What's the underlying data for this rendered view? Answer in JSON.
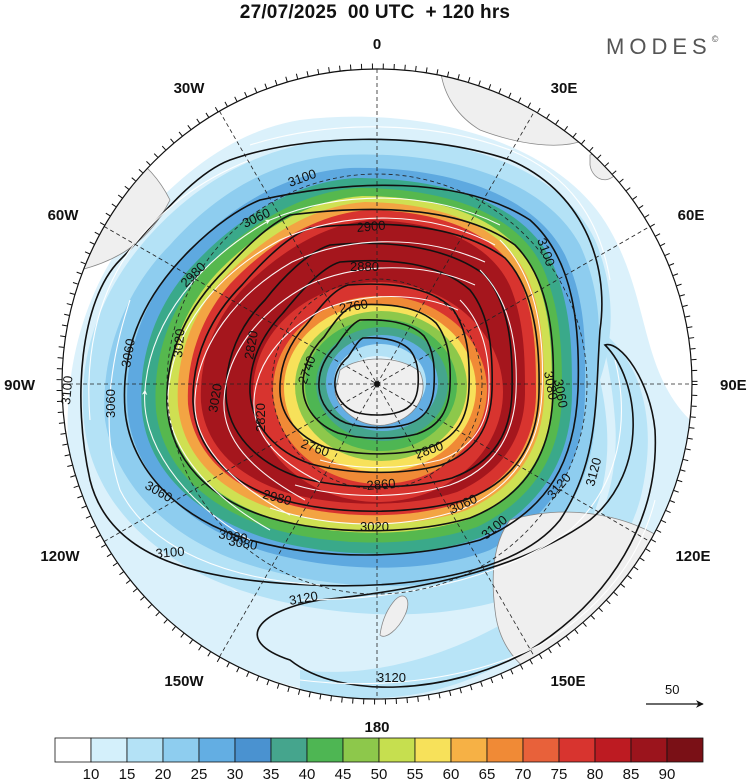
{
  "header": {
    "title": "27/07/2025  00 UTC  + 120 hrs",
    "brand": "MODES",
    "brand_mark": "©"
  },
  "longitude_labels": {
    "n0": "0",
    "n30e": "30E",
    "n60e": "60E",
    "n90e": "90E",
    "n120e": "120E",
    "n150e": "150E",
    "n180": "180",
    "n150w": "150W",
    "n120w": "120W",
    "n90w": "90W",
    "n60w": "60W",
    "n30w": "30W"
  },
  "contour_labels": [
    "3100",
    "3060",
    "2980",
    "3060",
    "3020",
    "2900",
    "2880",
    "2760",
    "2740",
    "2820",
    "2820",
    "2760",
    "2800",
    "2860",
    "2980",
    "3020",
    "3060",
    "3100",
    "3120",
    "3080",
    "3060",
    "3100",
    "3020",
    "3080",
    "3100",
    "3120",
    "3120",
    "3120",
    "3060",
    "3100",
    "3060",
    "3080"
  ],
  "colorbar": {
    "tick_labels": [
      "10",
      "15",
      "20",
      "25",
      "30",
      "35",
      "40",
      "45",
      "50",
      "55",
      "60",
      "65",
      "70",
      "75",
      "80",
      "85",
      "90"
    ],
    "colors": [
      "#ffffff",
      "#d4f0fb",
      "#b4e2f6",
      "#8ecdef",
      "#63aee3",
      "#4a92d0",
      "#45a58d",
      "#4eb653",
      "#8dc84b",
      "#c6df4f",
      "#f7e15a",
      "#f6b145",
      "#f08a36",
      "#e8613a",
      "#d8342f",
      "#bd1b22",
      "#9b141c",
      "#7a1016"
    ]
  },
  "wind_scale": {
    "label": "50"
  }
}
